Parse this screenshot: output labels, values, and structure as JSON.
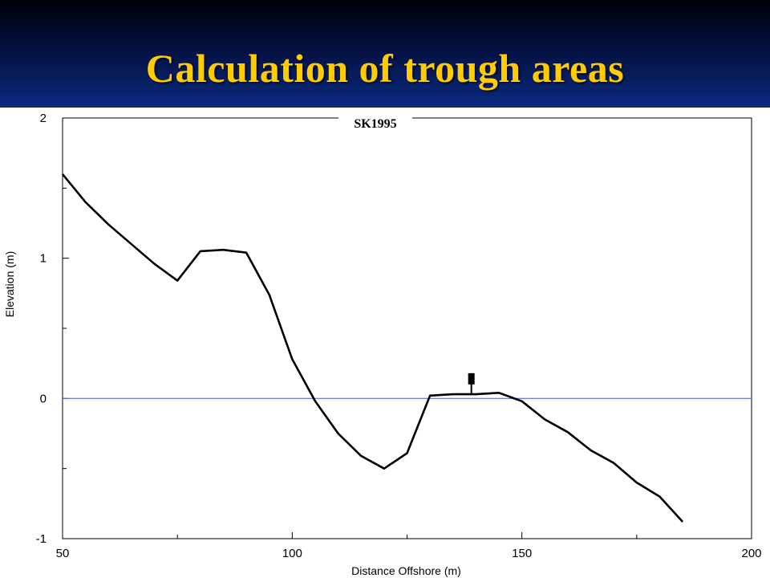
{
  "slide": {
    "title": "Calculation of trough areas"
  },
  "colors": {
    "header_top": "#000008",
    "header_bottom": "#0c2a80",
    "title": "#ffcc00",
    "profile_line": "#000000",
    "zero_line": "#5a6ee0"
  },
  "chart_data": {
    "type": "line",
    "title": "SK1995",
    "xlabel": "Distance Offshore (m)",
    "ylabel": "Elevation (m)",
    "xlim": [
      50,
      200
    ],
    "ylim": [
      -1,
      2
    ],
    "x_ticks": [
      50,
      100,
      150,
      200
    ],
    "y_ticks": [
      -1,
      0,
      1,
      2
    ],
    "x_tick_labels": [
      "50",
      "100",
      "150",
      "200"
    ],
    "y_tick_labels": [
      "-1",
      "0",
      "1",
      "2"
    ],
    "reference_line": {
      "y": 0
    },
    "marker": {
      "x": 139,
      "y": 0.03,
      "height": 0.15
    },
    "grid": false,
    "series": [
      {
        "x": [
          50,
          55,
          60,
          65,
          70,
          75,
          80,
          85,
          90,
          95,
          100,
          105,
          110,
          115,
          120,
          125,
          130,
          135,
          140,
          145,
          150,
          155,
          160,
          165,
          170,
          175,
          180,
          185
        ],
        "y": [
          1.6,
          1.4,
          1.24,
          1.1,
          0.96,
          0.84,
          1.05,
          1.06,
          1.04,
          0.74,
          0.28,
          -0.02,
          -0.25,
          -0.41,
          -0.5,
          -0.39,
          0.02,
          0.03,
          0.03,
          0.04,
          -0.02,
          -0.15,
          -0.24,
          -0.37,
          -0.46,
          -0.6,
          -0.7,
          -0.88
        ]
      }
    ]
  }
}
